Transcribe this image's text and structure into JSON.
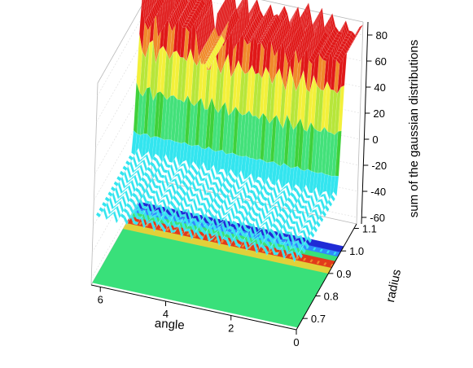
{
  "chart_data": {
    "type": "surface3d",
    "title": "",
    "xlabel": "angle",
    "ylabel": "radius",
    "zlabel": "sum of the gaussian distributions",
    "x_ticks": [
      "0",
      "2",
      "4",
      "6"
    ],
    "y_ticks": [
      "0.7",
      "0.8",
      "0.9",
      "1.0",
      "1.1"
    ],
    "z_ticks": [
      "-60",
      "-40",
      "-20",
      "0",
      "20",
      "40",
      "60",
      "80"
    ],
    "xlim": [
      0,
      6.28
    ],
    "ylim": [
      0.65,
      1.12
    ],
    "zlim": [
      -65,
      90
    ],
    "color_levels": [
      {
        "min": -65,
        "max": -45,
        "color": "#1f2bd6"
      },
      {
        "min": -45,
        "max": -25,
        "color": "#2f8bff"
      },
      {
        "min": -25,
        "max": -5,
        "color": "#33e5ef"
      },
      {
        "min": -5,
        "max": 15,
        "color": "#43e17a"
      },
      {
        "min": 15,
        "max": 30,
        "color": "#3fd13a"
      },
      {
        "min": 30,
        "max": 45,
        "color": "#b7e63a"
      },
      {
        "min": 45,
        "max": 55,
        "color": "#f3f03a"
      },
      {
        "min": 55,
        "max": 70,
        "color": "#f08a2b"
      },
      {
        "min": 70,
        "max": 90,
        "color": "#e01818"
      }
    ],
    "contour_floor": true,
    "grid": true,
    "notes": []
  }
}
